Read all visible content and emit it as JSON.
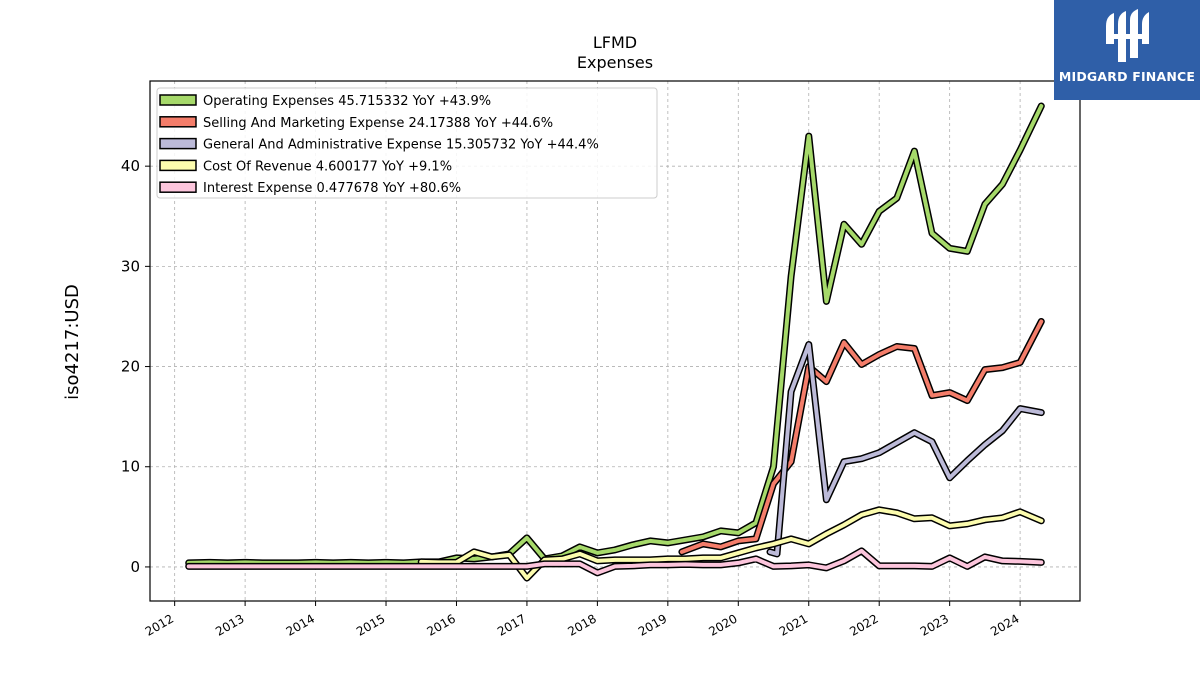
{
  "chart_data": {
    "type": "line",
    "title": "LFMD",
    "subtitle": "Expenses",
    "ylabel": "iso4217:USD",
    "xlabel": "",
    "xlim": [
      2011.65,
      2024.85
    ],
    "ylim": [
      -3.4,
      48.5
    ],
    "x_ticks": [
      "2012",
      "2013",
      "2014",
      "2015",
      "2016",
      "2017",
      "2018",
      "2019",
      "2020",
      "2021",
      "2022",
      "2023",
      "2024"
    ],
    "y_ticks": [
      "0",
      "10",
      "20",
      "30",
      "40"
    ],
    "grid": true,
    "legend_position": "top-left",
    "series": [
      {
        "name": "Operating Expenses",
        "legend": "Operating Expenses  45.715332 YoY +43.9%",
        "color": "#a6d96a",
        "points": [
          [
            2012.2,
            0.4
          ],
          [
            2012.5,
            0.45
          ],
          [
            2012.75,
            0.4
          ],
          [
            2013.0,
            0.45
          ],
          [
            2013.25,
            0.4
          ],
          [
            2013.5,
            0.4
          ],
          [
            2013.75,
            0.4
          ],
          [
            2014.0,
            0.45
          ],
          [
            2014.25,
            0.4
          ],
          [
            2014.5,
            0.45
          ],
          [
            2014.75,
            0.4
          ],
          [
            2015.0,
            0.45
          ],
          [
            2015.25,
            0.4
          ],
          [
            2015.5,
            0.5
          ],
          [
            2015.75,
            0.5
          ],
          [
            2016.0,
            0.9
          ],
          [
            2016.25,
            0.8
          ],
          [
            2016.5,
            1.0
          ],
          [
            2016.75,
            1.3
          ],
          [
            2017.0,
            2.9
          ],
          [
            2017.25,
            0.8
          ],
          [
            2017.5,
            1.1
          ],
          [
            2017.75,
            2.0
          ],
          [
            2018.0,
            1.4
          ],
          [
            2018.25,
            1.7
          ],
          [
            2018.5,
            2.2
          ],
          [
            2018.75,
            2.6
          ],
          [
            2019.0,
            2.4
          ],
          [
            2019.25,
            2.7
          ],
          [
            2019.5,
            3.0
          ],
          [
            2019.75,
            3.6
          ],
          [
            2020.0,
            3.4
          ],
          [
            2020.25,
            4.4
          ],
          [
            2020.5,
            10.0
          ],
          [
            2020.75,
            29.0
          ],
          [
            2021.0,
            43.0
          ],
          [
            2021.25,
            26.5
          ],
          [
            2021.5,
            34.2
          ],
          [
            2021.75,
            32.2
          ],
          [
            2022.0,
            35.5
          ],
          [
            2022.25,
            36.8
          ],
          [
            2022.5,
            41.5
          ],
          [
            2022.75,
            33.3
          ],
          [
            2023.0,
            31.8
          ],
          [
            2023.25,
            31.5
          ],
          [
            2023.5,
            36.2
          ],
          [
            2023.75,
            38.2
          ],
          [
            2024.0,
            41.6
          ],
          [
            2024.3,
            46.0
          ]
        ]
      },
      {
        "name": "Selling And Marketing Expense",
        "legend": "Selling And Marketing Expense  24.17388 YoY +44.6%",
        "color": "#f47d6a",
        "points": [
          [
            2019.2,
            1.5
          ],
          [
            2019.5,
            2.3
          ],
          [
            2019.75,
            2.0
          ],
          [
            2020.0,
            2.6
          ],
          [
            2020.25,
            2.8
          ],
          [
            2020.5,
            8.3
          ],
          [
            2020.75,
            10.5
          ],
          [
            2021.0,
            20.0
          ],
          [
            2021.25,
            18.5
          ],
          [
            2021.5,
            22.4
          ],
          [
            2021.75,
            20.2
          ],
          [
            2022.0,
            21.2
          ],
          [
            2022.25,
            22.0
          ],
          [
            2022.5,
            21.8
          ],
          [
            2022.75,
            17.1
          ],
          [
            2023.0,
            17.4
          ],
          [
            2023.25,
            16.6
          ],
          [
            2023.5,
            19.7
          ],
          [
            2023.75,
            19.9
          ],
          [
            2024.0,
            20.4
          ],
          [
            2024.3,
            24.5
          ]
        ]
      },
      {
        "name": "General And Administrative Expense",
        "legend": "General And Administrative Expense  15.305732 YoY +44.4%",
        "color": "#bcbad8",
        "points": [
          [
            2020.45,
            1.5
          ],
          [
            2020.55,
            1.3
          ],
          [
            2020.75,
            17.5
          ],
          [
            2021.0,
            22.2
          ],
          [
            2021.25,
            6.7
          ],
          [
            2021.5,
            10.5
          ],
          [
            2021.75,
            10.8
          ],
          [
            2022.0,
            11.4
          ],
          [
            2022.25,
            12.4
          ],
          [
            2022.5,
            13.4
          ],
          [
            2022.75,
            12.5
          ],
          [
            2023.0,
            8.9
          ],
          [
            2023.25,
            10.6
          ],
          [
            2023.5,
            12.2
          ],
          [
            2023.75,
            13.6
          ],
          [
            2024.0,
            15.8
          ],
          [
            2024.3,
            15.4
          ]
        ]
      },
      {
        "name": "Cost Of Revenue",
        "legend": "Cost Of Revenue  4.600177 YoY +9.1%",
        "color": "#fcfcae",
        "points": [
          [
            2015.5,
            0.5
          ],
          [
            2015.75,
            0.45
          ],
          [
            2016.0,
            0.45
          ],
          [
            2016.25,
            1.5
          ],
          [
            2016.5,
            1.0
          ],
          [
            2016.75,
            1.2
          ],
          [
            2017.0,
            -1.1
          ],
          [
            2017.25,
            0.7
          ],
          [
            2017.5,
            0.8
          ],
          [
            2017.75,
            1.3
          ],
          [
            2018.0,
            0.6
          ],
          [
            2018.25,
            0.7
          ],
          [
            2018.5,
            0.7
          ],
          [
            2018.75,
            0.7
          ],
          [
            2019.0,
            0.8
          ],
          [
            2019.25,
            0.8
          ],
          [
            2019.5,
            0.9
          ],
          [
            2019.75,
            0.9
          ],
          [
            2020.0,
            1.4
          ],
          [
            2020.25,
            1.9
          ],
          [
            2020.5,
            2.3
          ],
          [
            2020.75,
            2.8
          ],
          [
            2021.0,
            2.3
          ],
          [
            2021.25,
            3.3
          ],
          [
            2021.5,
            4.2
          ],
          [
            2021.75,
            5.2
          ],
          [
            2022.0,
            5.7
          ],
          [
            2022.25,
            5.4
          ],
          [
            2022.5,
            4.8
          ],
          [
            2022.75,
            4.9
          ],
          [
            2023.0,
            4.1
          ],
          [
            2023.25,
            4.3
          ],
          [
            2023.5,
            4.7
          ],
          [
            2023.75,
            4.9
          ],
          [
            2024.0,
            5.5
          ],
          [
            2024.3,
            4.6
          ]
        ]
      },
      {
        "name": "Interest Expense",
        "legend": "Interest Expense  0.477678 YoY +80.6%",
        "color": "#fcc5dc",
        "points": [
          [
            2012.2,
            0.05
          ],
          [
            2012.5,
            0.05
          ],
          [
            2013.0,
            0.05
          ],
          [
            2013.5,
            0.05
          ],
          [
            2014.0,
            0.05
          ],
          [
            2014.5,
            0.05
          ],
          [
            2015.0,
            0.05
          ],
          [
            2015.5,
            0.05
          ],
          [
            2016.0,
            0.05
          ],
          [
            2016.5,
            0.05
          ],
          [
            2017.0,
            0.05
          ],
          [
            2017.25,
            0.3
          ],
          [
            2017.5,
            0.3
          ],
          [
            2017.75,
            0.3
          ],
          [
            2018.0,
            -0.6
          ],
          [
            2018.25,
            0.05
          ],
          [
            2018.5,
            0.1
          ],
          [
            2018.75,
            0.2
          ],
          [
            2019.0,
            0.2
          ],
          [
            2019.25,
            0.25
          ],
          [
            2019.5,
            0.2
          ],
          [
            2019.75,
            0.2
          ],
          [
            2020.0,
            0.4
          ],
          [
            2020.25,
            0.8
          ],
          [
            2020.5,
            0.05
          ],
          [
            2020.75,
            0.1
          ],
          [
            2021.0,
            0.2
          ],
          [
            2021.25,
            -0.1
          ],
          [
            2021.5,
            0.6
          ],
          [
            2021.75,
            1.6
          ],
          [
            2022.0,
            0.1
          ],
          [
            2022.25,
            0.1
          ],
          [
            2022.5,
            0.1
          ],
          [
            2022.75,
            0.05
          ],
          [
            2023.0,
            0.9
          ],
          [
            2023.25,
            0.05
          ],
          [
            2023.5,
            1.0
          ],
          [
            2023.75,
            0.6
          ],
          [
            2024.0,
            0.55
          ],
          [
            2024.3,
            0.45
          ]
        ]
      }
    ]
  },
  "logo": {
    "text": "MIDGARD FINANCE",
    "icon": "midgard-finance-logo-icon",
    "background": "#2f5fa8"
  }
}
